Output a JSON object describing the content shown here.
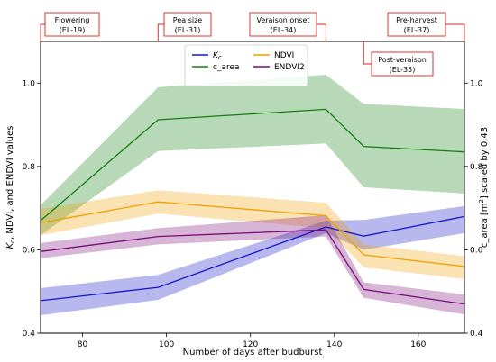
{
  "chart_data": {
    "type": "line",
    "xlabel": "Number of days after budburst",
    "ylabel_left": "K_c, NDVI, and ENDVI values",
    "ylabel_right": "c_area [m²] scaled by 0.43",
    "xlim": [
      70,
      171
    ],
    "ylim": [
      0.4,
      1.1
    ],
    "x_ticks": [
      80,
      100,
      120,
      140,
      160
    ],
    "y_ticks_left": [
      0.4,
      0.6,
      0.8,
      1.0
    ],
    "y_ticks_right": [
      0.4,
      0.6,
      0.8,
      1.0
    ],
    "legend_position": "top-center",
    "x": [
      70,
      98,
      138,
      147,
      171
    ],
    "series": [
      {
        "name": "K_c",
        "color": "#1515c8",
        "values": [
          0.478,
          0.51,
          0.655,
          0.633,
          0.68
        ],
        "lower": [
          0.443,
          0.48,
          0.64,
          0.6,
          0.64
        ],
        "upper": [
          0.508,
          0.54,
          0.67,
          0.672,
          0.705
        ]
      },
      {
        "name": "c_area",
        "color": "#128012",
        "values": [
          0.67,
          0.912,
          0.937,
          0.848,
          0.835
        ],
        "lower": [
          0.635,
          0.837,
          0.855,
          0.75,
          0.735
        ],
        "upper": [
          0.707,
          0.99,
          1.02,
          0.95,
          0.938
        ]
      },
      {
        "name": "NDVI",
        "color": "#f0a000",
        "values": [
          0.665,
          0.715,
          0.682,
          0.588,
          0.56
        ],
        "lower": [
          0.635,
          0.687,
          0.652,
          0.558,
          0.53
        ],
        "upper": [
          0.698,
          0.743,
          0.713,
          0.613,
          0.585
        ]
      },
      {
        "name": "ENDVI2",
        "color": "#7a0a7a",
        "values": [
          0.596,
          0.632,
          0.648,
          0.505,
          0.47
        ],
        "lower": [
          0.58,
          0.613,
          0.632,
          0.485,
          0.445
        ],
        "upper": [
          0.616,
          0.652,
          0.683,
          0.522,
          0.493
        ]
      }
    ],
    "annotations": [
      {
        "line1": "Flowering",
        "line2": "(EL-19)",
        "x": 70
      },
      {
        "line1": "Pea size",
        "line2": "(EL-31)",
        "x": 98
      },
      {
        "line1": "Veraison onset",
        "line2": "(EL-34)",
        "x": 138
      },
      {
        "line1": "Post-veraison",
        "line2": "(EL-35)",
        "x": 147
      },
      {
        "line1": "Pre-harvest",
        "line2": "(EL-37)",
        "x": 171
      }
    ]
  }
}
